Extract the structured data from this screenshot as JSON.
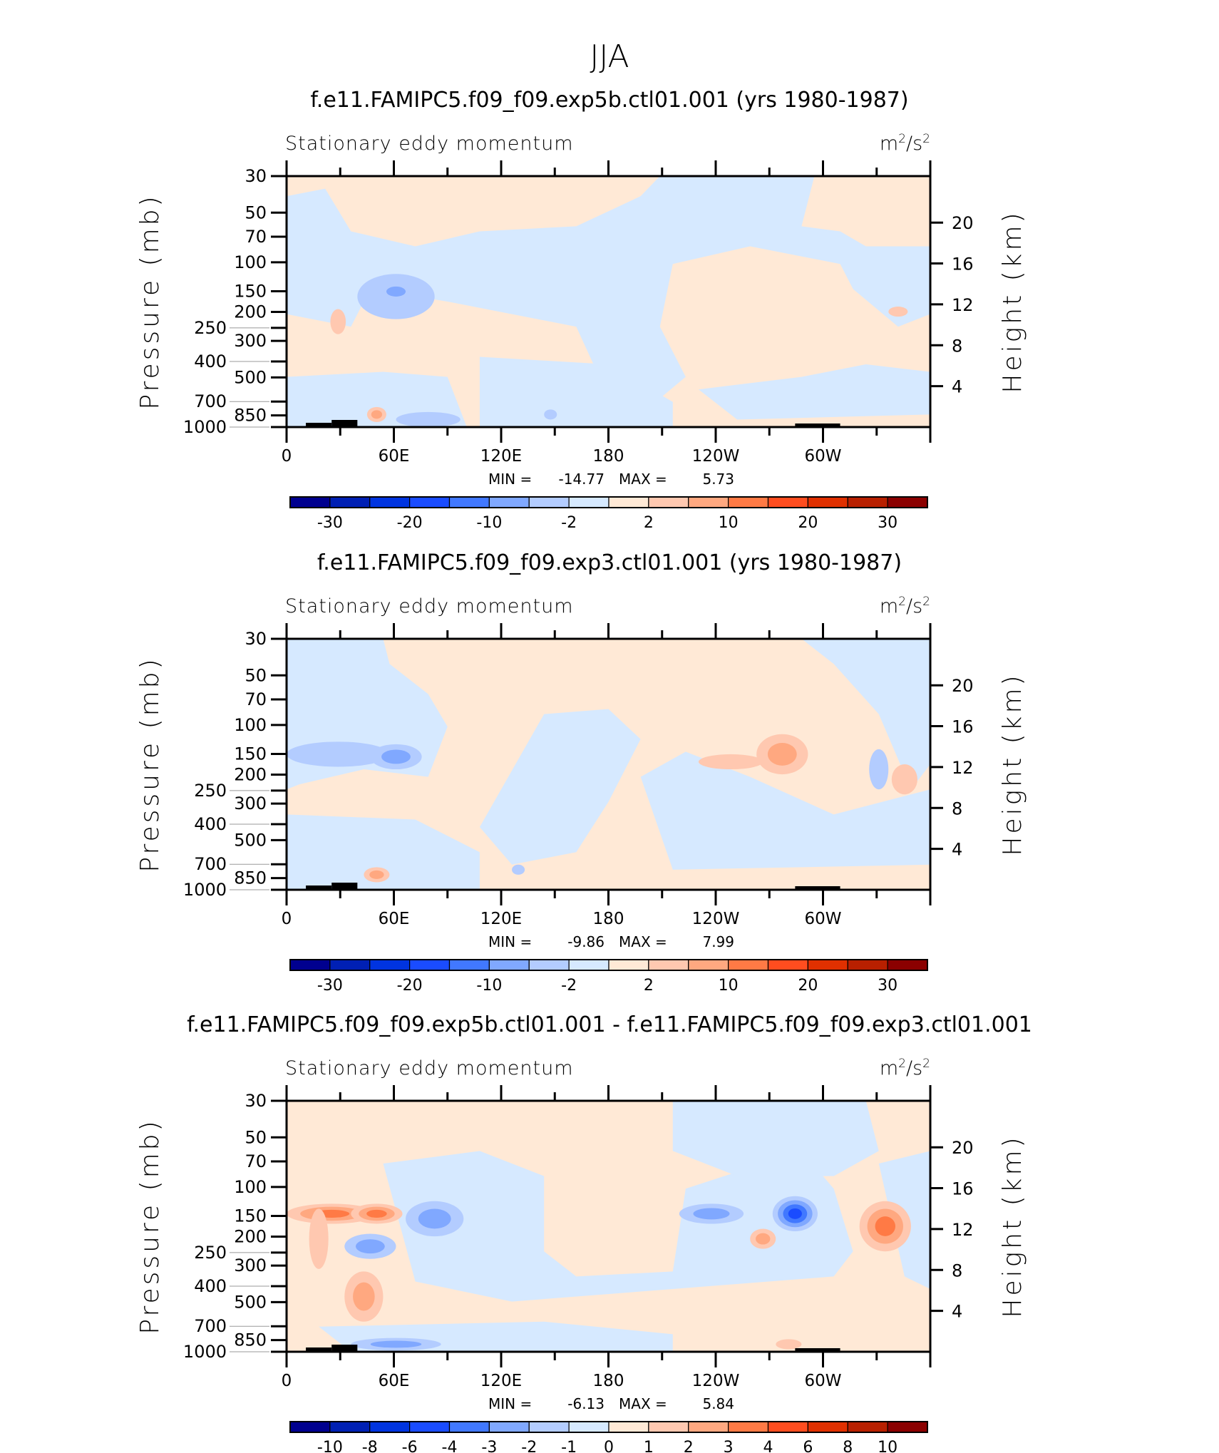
{
  "page_title": "JJA",
  "colors": [
    "#00008f",
    "#0020b4",
    "#0034e0",
    "#1a4cff",
    "#4178ff",
    "#80a8ff",
    "#b3ccff",
    "#d6e9ff",
    "#ffe9d6",
    "#ffc8b0",
    "#ffa880",
    "#ff7a45",
    "#ff4d1f",
    "#e03000",
    "#b82000",
    "#8b0000"
  ],
  "chart_data": [
    {
      "type": "heatmap",
      "title": "f.e11.FAMIPC5.f09_f09.exp5b.ctl01.001 (yrs 1980-1987)",
      "left_string": "Stationary eddy momentum",
      "units": "m2/s2",
      "xlabel": "",
      "ylabel": "Pressure (mb)",
      "ylabel_right": "Height (km)",
      "x_ticks": [
        "0",
        "60E",
        "120E",
        "180",
        "120W",
        "60W"
      ],
      "y_ticks": [
        "30",
        "50",
        "70",
        "100",
        "150",
        "200",
        "250",
        "300",
        "400",
        "500",
        "700",
        "850",
        "1000"
      ],
      "y_ticks_right": [
        "20",
        "16",
        "12",
        "8",
        "4"
      ],
      "ylim": [
        1000,
        30
      ],
      "min_label": "MIN =",
      "min": "-14.77",
      "max_label": "MAX =",
      "max": "5.73",
      "colorbar_levels": [
        -35,
        -30,
        -25,
        -20,
        -15,
        -10,
        -5,
        -2,
        0,
        2,
        5,
        10,
        15,
        20,
        25,
        30
      ],
      "colorbar_labels": [
        "-30",
        "-20",
        "-10",
        "-2",
        "2",
        "10",
        "20",
        "30"
      ]
    },
    {
      "type": "heatmap",
      "title": "f.e11.FAMIPC5.f09_f09.exp3.ctl01.001 (yrs 1980-1987)",
      "left_string": "Stationary eddy momentum",
      "units": "m2/s2",
      "xlabel": "",
      "ylabel": "Pressure (mb)",
      "ylabel_right": "Height (km)",
      "x_ticks": [
        "0",
        "60E",
        "120E",
        "180",
        "120W",
        "60W"
      ],
      "y_ticks": [
        "30",
        "50",
        "70",
        "100",
        "150",
        "200",
        "250",
        "300",
        "400",
        "500",
        "700",
        "850",
        "1000"
      ],
      "y_ticks_right": [
        "20",
        "16",
        "12",
        "8",
        "4"
      ],
      "ylim": [
        1000,
        30
      ],
      "min_label": "MIN =",
      "min": "-9.86",
      "max_label": "MAX =",
      "max": "7.99",
      "colorbar_labels": [
        "-30",
        "-20",
        "-10",
        "-2",
        "2",
        "10",
        "20",
        "30"
      ]
    },
    {
      "type": "heatmap",
      "title": "f.e11.FAMIPC5.f09_f09.exp5b.ctl01.001 - f.e11.FAMIPC5.f09_f09.exp3.ctl01.001",
      "left_string": "Stationary eddy momentum",
      "units": "m2/s2",
      "xlabel": "",
      "ylabel": "Pressure (mb)",
      "ylabel_right": "Height (km)",
      "x_ticks": [
        "0",
        "60E",
        "120E",
        "180",
        "120W",
        "60W"
      ],
      "y_ticks": [
        "30",
        "50",
        "70",
        "100",
        "150",
        "200",
        "250",
        "300",
        "400",
        "500",
        "700",
        "850",
        "1000"
      ],
      "y_ticks_right": [
        "20",
        "16",
        "12",
        "8",
        "4"
      ],
      "ylim": [
        1000,
        30
      ],
      "min_label": "MIN =",
      "min": "-6.13",
      "max_label": "MAX =",
      "max": "5.84",
      "colorbar_labels": [
        "-10",
        "-8",
        "-6",
        "-4",
        "-3",
        "-2",
        "-1",
        "0",
        "1",
        "2",
        "3",
        "4",
        "6",
        "8",
        "10"
      ]
    }
  ]
}
